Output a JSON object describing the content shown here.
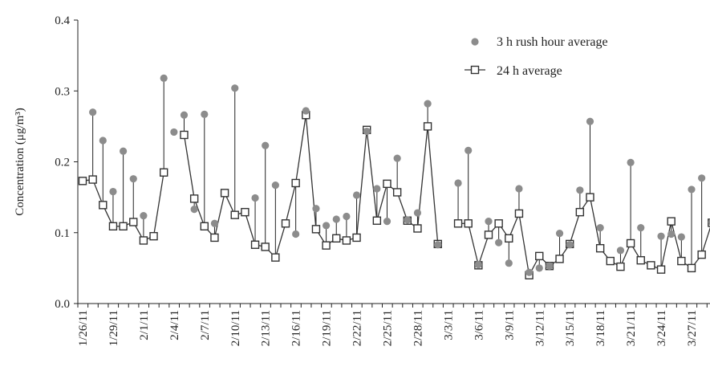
{
  "chart_data": {
    "type": "line",
    "ylabel": "Concentration (μg/m³)",
    "ylim": [
      0.0,
      0.4
    ],
    "y_ticks": [
      "0.0",
      "0.1",
      "0.2",
      "0.3",
      "0.4"
    ],
    "x_tick_labels": [
      "1/26/11",
      "1/29/11",
      "2/1/11",
      "2/4/11",
      "2/7/11",
      "2/10/11",
      "2/13/11",
      "2/16/11",
      "2/19/11",
      "2/22/11",
      "2/25/11",
      "2/28/11",
      "3/3/11",
      "3/6/11",
      "3/9/11",
      "3/12/11",
      "3/15/11",
      "3/18/11",
      "3/21/11",
      "3/24/11",
      "3/27/11"
    ],
    "x_start_date": "1/26/11",
    "legend_position": "top-right",
    "colors": {
      "rush_hour": "#8c8c8c",
      "average": "#333333"
    },
    "series": [
      {
        "name": "3 h rush hour average",
        "style": "dot",
        "x": [
          "1/27/11",
          "1/28/11",
          "1/29/11",
          "1/30/11",
          "1/31/11",
          "2/1/11",
          "2/3/11",
          "2/4/11",
          "2/5/11",
          "2/6/11",
          "2/7/11",
          "2/8/11",
          "2/10/11",
          "2/12/11",
          "2/13/11",
          "2/14/11",
          "2/16/11",
          "2/17/11",
          "2/18/11",
          "2/19/11",
          "2/20/11",
          "2/21/11",
          "2/22/11",
          "2/23/11",
          "2/24/11",
          "2/25/11",
          "2/26/11",
          "2/27/11",
          "2/28/11",
          "3/1/11",
          "3/2/11",
          "3/4/11",
          "3/5/11",
          "3/6/11",
          "3/7/11",
          "3/8/11",
          "3/9/11",
          "3/10/11",
          "3/11/11",
          "3/12/11",
          "3/13/11",
          "3/14/11",
          "3/15/11",
          "3/16/11",
          "3/17/11",
          "3/18/11",
          "3/20/11",
          "3/21/11",
          "3/22/11",
          "3/24/11",
          "3/25/11",
          "3/26/11",
          "3/27/11",
          "3/28/11",
          "3/29/11"
        ],
        "values": [
          0.27,
          0.23,
          0.158,
          0.215,
          0.176,
          0.124,
          0.318,
          0.242,
          0.266,
          0.133,
          0.267,
          0.113,
          0.304,
          0.149,
          0.223,
          0.167,
          0.098,
          0.272,
          0.134,
          0.11,
          0.119,
          0.123,
          0.153,
          0.243,
          0.162,
          0.116,
          0.205,
          0.118,
          0.128,
          0.282,
          0.083,
          0.17,
          0.216,
          0.055,
          0.116,
          0.086,
          0.057,
          0.162,
          0.044,
          0.05,
          0.053,
          0.099,
          0.083,
          0.16,
          0.257,
          0.107,
          0.075,
          0.199,
          0.107,
          0.095,
          0.098,
          0.094,
          0.161,
          0.177,
          0.115
        ]
      },
      {
        "name": "24 h average",
        "style": "line-square",
        "x": [
          "1/26/11",
          "1/27/11",
          "1/28/11",
          "1/29/11",
          "1/30/11",
          "1/31/11",
          "2/1/11",
          "2/2/11",
          "2/3/11",
          "2/5/11",
          "2/6/11",
          "2/7/11",
          "2/8/11",
          "2/9/11",
          "2/10/11",
          "2/11/11",
          "2/12/11",
          "2/13/11",
          "2/14/11",
          "2/15/11",
          "2/16/11",
          "2/17/11",
          "2/18/11",
          "2/19/11",
          "2/20/11",
          "2/21/11",
          "2/22/11",
          "2/23/11",
          "2/24/11",
          "2/25/11",
          "2/26/11",
          "2/27/11",
          "2/28/11",
          "3/1/11",
          "3/2/11",
          "3/4/11",
          "3/5/11",
          "3/6/11",
          "3/7/11",
          "3/8/11",
          "3/9/11",
          "3/10/11",
          "3/11/11",
          "3/12/11",
          "3/13/11",
          "3/14/11",
          "3/15/11",
          "3/16/11",
          "3/17/11",
          "3/18/11",
          "3/19/11",
          "3/20/11",
          "3/21/11",
          "3/22/11",
          "3/23/11",
          "3/24/11",
          "3/25/11",
          "3/26/11",
          "3/27/11",
          "3/28/11",
          "3/29/11"
        ],
        "values": [
          0.173,
          0.175,
          0.139,
          0.109,
          0.109,
          0.115,
          0.089,
          0.095,
          0.185,
          0.238,
          0.148,
          0.109,
          0.093,
          0.156,
          0.125,
          0.129,
          0.083,
          0.08,
          0.065,
          0.113,
          0.17,
          0.266,
          0.105,
          0.082,
          0.092,
          0.089,
          0.093,
          0.245,
          0.117,
          0.169,
          0.157,
          0.117,
          0.106,
          0.25,
          0.084,
          0.113,
          0.113,
          0.054,
          0.097,
          0.113,
          0.092,
          0.127,
          0.04,
          0.067,
          0.053,
          0.063,
          0.084,
          0.129,
          0.15,
          0.078,
          0.06,
          0.052,
          0.085,
          0.061,
          0.054,
          0.048,
          0.116,
          0.06,
          0.05,
          0.069,
          0.114
        ]
      }
    ]
  }
}
